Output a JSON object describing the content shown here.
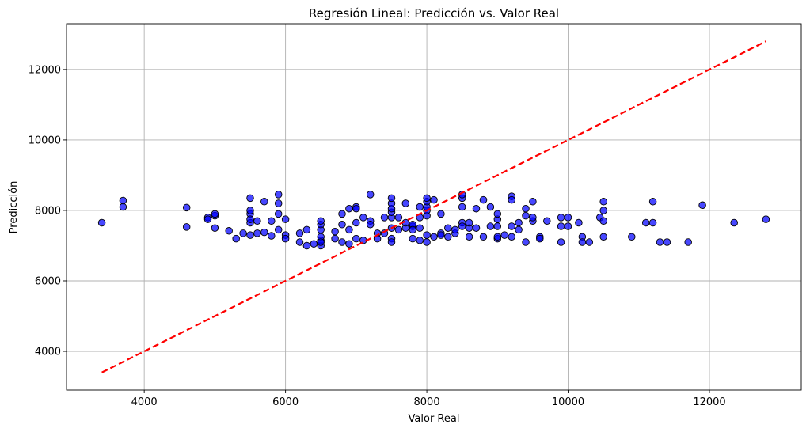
{
  "chart_data": {
    "type": "scatter",
    "title": "Regresión Lineal: Predicción vs. Valor Real",
    "xlabel": "Valor Real",
    "ylabel": "Predicción",
    "xlim": [
      2900,
      13300
    ],
    "ylim": [
      2900,
      13300
    ],
    "xticks": [
      4000,
      6000,
      8000,
      10000,
      12000
    ],
    "yticks": [
      4000,
      6000,
      8000,
      10000,
      12000
    ],
    "xtick_labels": [
      "4000",
      "6000",
      "8000",
      "10000",
      "12000"
    ],
    "ytick_labels": [
      "4000",
      "6000",
      "8000",
      "10000",
      "12000"
    ],
    "grid": true,
    "point_color": "#0000ff",
    "point_edge_color": "#000000",
    "line_color": "#ff0000",
    "reference_line": {
      "x": [
        3400,
        12800
      ],
      "y": [
        3400,
        12800
      ],
      "style": "dashed"
    },
    "series": [
      {
        "x": [
          3400,
          3700,
          3700,
          4600,
          4600,
          4900,
          4900,
          5000,
          5000,
          5000,
          5200,
          5300,
          5400,
          5500,
          5500,
          5500,
          5500,
          5500,
          5500,
          5600,
          5600,
          5700,
          5700,
          5800,
          5800,
          5900,
          5900,
          5900,
          5900,
          6000,
          6000,
          6000,
          6200,
          6200,
          6300,
          6300,
          6400,
          6500,
          6500,
          6500,
          6500,
          6500,
          6500,
          6500,
          6700,
          6700,
          6800,
          6800,
          6800,
          6900,
          6900,
          6900,
          7000,
          7000,
          7000,
          7000,
          7100,
          7100,
          7200,
          7200,
          7200,
          7300,
          7300,
          7400,
          7400,
          7500,
          7500,
          7500,
          7500,
          7500,
          7500,
          7500,
          7500,
          7600,
          7600,
          7700,
          7700,
          7700,
          7800,
          7800,
          7800,
          7800,
          7900,
          7900,
          7900,
          7900,
          8000,
          8000,
          8000,
          8000,
          8000,
          8000,
          8000,
          8100,
          8100,
          8200,
          8200,
          8200,
          8300,
          8300,
          8400,
          8400,
          8500,
          8500,
          8500,
          8500,
          8500,
          8600,
          8600,
          8600,
          8700,
          8700,
          8800,
          8800,
          8900,
          8900,
          9000,
          9000,
          9000,
          9000,
          9000,
          9100,
          9200,
          9200,
          9200,
          9200,
          9300,
          9300,
          9400,
          9400,
          9400,
          9500,
          9500,
          9500,
          9600,
          9600,
          9700,
          9900,
          9900,
          9900,
          10000,
          10000,
          10150,
          10200,
          10200,
          10300,
          10450,
          10500,
          10500,
          10500,
          10500,
          10900,
          11100,
          11200,
          11200,
          11300,
          11400,
          11700,
          11900,
          12350,
          12800
        ],
        "y": [
          7650,
          8100,
          8280,
          7530,
          8080,
          7800,
          7750,
          7850,
          7500,
          7900,
          7420,
          7200,
          7350,
          7300,
          7650,
          7900,
          8000,
          8350,
          7750,
          7700,
          7350,
          7380,
          8250,
          7280,
          7700,
          8450,
          8200,
          7900,
          7450,
          7750,
          7300,
          7200,
          7350,
          7100,
          7000,
          7450,
          7050,
          7000,
          7150,
          7250,
          7450,
          7600,
          7700,
          7100,
          7400,
          7200,
          7900,
          7600,
          7100,
          7450,
          8050,
          7050,
          8100,
          7650,
          7200,
          8050,
          7800,
          7150,
          8450,
          7700,
          7600,
          7350,
          7200,
          7800,
          7350,
          7200,
          7500,
          7800,
          7950,
          8050,
          8200,
          8350,
          7100,
          7450,
          7800,
          7500,
          7650,
          8200,
          7550,
          7200,
          7600,
          7450,
          7800,
          8100,
          7150,
          7500,
          7300,
          7850,
          8000,
          8100,
          8250,
          8350,
          7100,
          7250,
          8300,
          7900,
          7350,
          7300,
          7500,
          7250,
          7350,
          7450,
          8350,
          8450,
          7650,
          8100,
          7550,
          7500,
          7650,
          7250,
          8050,
          7500,
          8300,
          7250,
          8100,
          7550,
          7200,
          7550,
          7750,
          7900,
          7250,
          7300,
          8400,
          8300,
          7550,
          7250,
          7650,
          7450,
          7100,
          7850,
          8050,
          7700,
          7800,
          8250,
          7250,
          7200,
          7700,
          7100,
          7550,
          7800,
          7550,
          7800,
          7650,
          7250,
          7100,
          7100,
          7800,
          8250,
          8000,
          7700,
          7250,
          7250,
          7650,
          8250,
          7650,
          7100,
          7100,
          7100,
          8150,
          7650,
          7750
        ]
      }
    ]
  }
}
